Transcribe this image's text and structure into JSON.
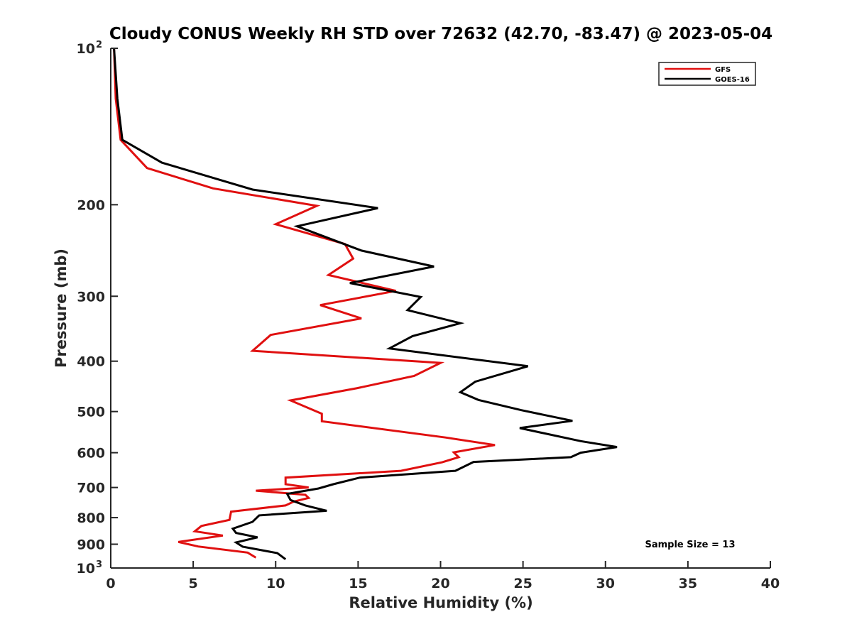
{
  "chart_data": {
    "type": "line",
    "title": "Cloudy CONUS Weekly RH STD over 72632 (42.70, -83.47) @ 2023-05-04",
    "xlabel": "Relative Humidity (%)",
    "ylabel": "Pressure (mb)",
    "xlim": [
      0,
      40
    ],
    "ylim": [
      100,
      1000
    ],
    "y_scale": "log",
    "y_reversed": true,
    "grid": false,
    "x_ticks": [
      "0",
      "5",
      "10",
      "15",
      "20",
      "25",
      "30",
      "35",
      "40"
    ],
    "y_ticks": [
      {
        "value": 100,
        "label": "10",
        "exp": "2"
      },
      {
        "value": 200,
        "label": "200"
      },
      {
        "value": 300,
        "label": "300"
      },
      {
        "value": 400,
        "label": "400"
      },
      {
        "value": 500,
        "label": "500"
      },
      {
        "value": 600,
        "label": "600"
      },
      {
        "value": 700,
        "label": "700"
      },
      {
        "value": 800,
        "label": "800"
      },
      {
        "value": 900,
        "label": "900"
      },
      {
        "value": 1000,
        "label": "10",
        "exp": "3"
      }
    ],
    "legend_position": "top-right",
    "annotation": "Sample Size = 13",
    "series": [
      {
        "name": "GFS",
        "color": "#e01010",
        "points": [
          [
            0.2,
            100
          ],
          [
            0.3,
            125
          ],
          [
            0.6,
            150
          ],
          [
            2.2,
            170
          ],
          [
            6.2,
            186
          ],
          [
            12.5,
            201
          ],
          [
            10.0,
            218
          ],
          [
            14.2,
            238
          ],
          [
            14.7,
            254
          ],
          [
            13.2,
            273
          ],
          [
            17.3,
            293
          ],
          [
            12.7,
            312
          ],
          [
            15.2,
            331
          ],
          [
            9.7,
            356
          ],
          [
            8.6,
            382
          ],
          [
            20.0,
            403
          ],
          [
            18.4,
            427
          ],
          [
            14.9,
            451
          ],
          [
            10.9,
            476
          ],
          [
            12.8,
            505
          ],
          [
            12.8,
            522
          ],
          [
            20.3,
            561
          ],
          [
            23.3,
            580
          ],
          [
            20.8,
            599
          ],
          [
            21.1,
            612
          ],
          [
            20.1,
            626
          ],
          [
            17.6,
            650
          ],
          [
            10.6,
            670
          ],
          [
            10.6,
            690
          ],
          [
            12.0,
            700
          ],
          [
            8.8,
            710
          ],
          [
            11.8,
            723
          ],
          [
            12.0,
            733
          ],
          [
            11.1,
            745
          ],
          [
            10.6,
            758
          ],
          [
            7.3,
            779
          ],
          [
            7.2,
            808
          ],
          [
            5.5,
            830
          ],
          [
            5.1,
            850
          ],
          [
            6.8,
            866
          ],
          [
            4.1,
            891
          ],
          [
            5.3,
            909
          ],
          [
            8.3,
            934
          ],
          [
            8.8,
            955
          ]
        ]
      },
      {
        "name": "GOES-16",
        "color": "#000000",
        "points": [
          [
            0.2,
            100
          ],
          [
            0.4,
            125
          ],
          [
            0.7,
            150
          ],
          [
            3.1,
            166
          ],
          [
            8.6,
            187
          ],
          [
            16.2,
            203
          ],
          [
            11.3,
            220
          ],
          [
            15.2,
            245
          ],
          [
            19.6,
            263
          ],
          [
            14.5,
            283
          ],
          [
            18.8,
            301
          ],
          [
            18.0,
            319
          ],
          [
            21.2,
            338
          ],
          [
            18.3,
            358
          ],
          [
            16.9,
            378
          ],
          [
            25.3,
            409
          ],
          [
            22.1,
            438
          ],
          [
            21.2,
            459
          ],
          [
            22.3,
            475
          ],
          [
            24.9,
            497
          ],
          [
            28.0,
            521
          ],
          [
            24.8,
            538
          ],
          [
            28.5,
            570
          ],
          [
            30.7,
            585
          ],
          [
            28.5,
            600
          ],
          [
            27.9,
            612
          ],
          [
            22.0,
            625
          ],
          [
            20.9,
            650
          ],
          [
            15.1,
            670
          ],
          [
            13.5,
            690
          ],
          [
            12.6,
            703
          ],
          [
            10.7,
            720
          ],
          [
            10.9,
            740
          ],
          [
            11.8,
            758
          ],
          [
            13.1,
            776
          ],
          [
            9.0,
            792
          ],
          [
            8.6,
            815
          ],
          [
            7.4,
            840
          ],
          [
            7.6,
            856
          ],
          [
            8.9,
            873
          ],
          [
            7.6,
            893
          ],
          [
            8.0,
            910
          ],
          [
            10.1,
            936
          ],
          [
            10.6,
            962
          ]
        ]
      }
    ]
  }
}
